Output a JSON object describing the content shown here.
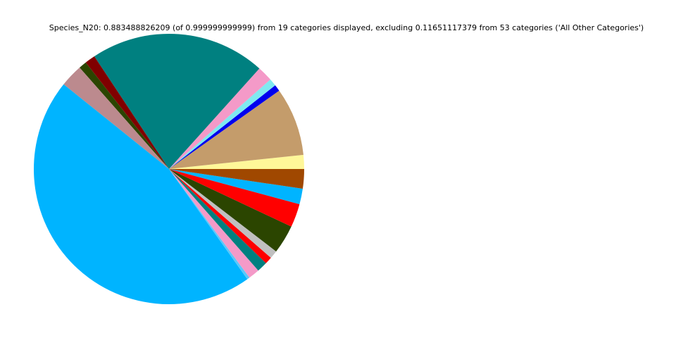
{
  "chart_data": {
    "type": "pie",
    "title": "Species_N20: 0.883488826209 (of 0.999999999999) from 19 categories displayed, excluding 0.11651117379 from 53 categories ('All Other Categories')",
    "values": [
      1.67,
      8.17,
      0.78,
      0.89,
      1.83,
      20.97,
      1.25,
      0.94,
      2.72,
      45.61,
      0.31,
      1.33,
      1.25,
      0.86,
      0.97,
      3.44,
      2.81,
      1.86,
      2.33
    ],
    "colors": [
      "#fff799",
      "#c49c6b",
      "#0000ee",
      "#7fe9f0",
      "#f49ac8",
      "#008080",
      "#800000",
      "#2b4500",
      "#bc8a8e",
      "#00b4ff",
      "#5ac8fa",
      "#f49ac8",
      "#008080",
      "#ff0000",
      "#c0c0c0",
      "#2b4500",
      "#ff0000",
      "#00b4ff",
      "#a04800"
    ]
  }
}
